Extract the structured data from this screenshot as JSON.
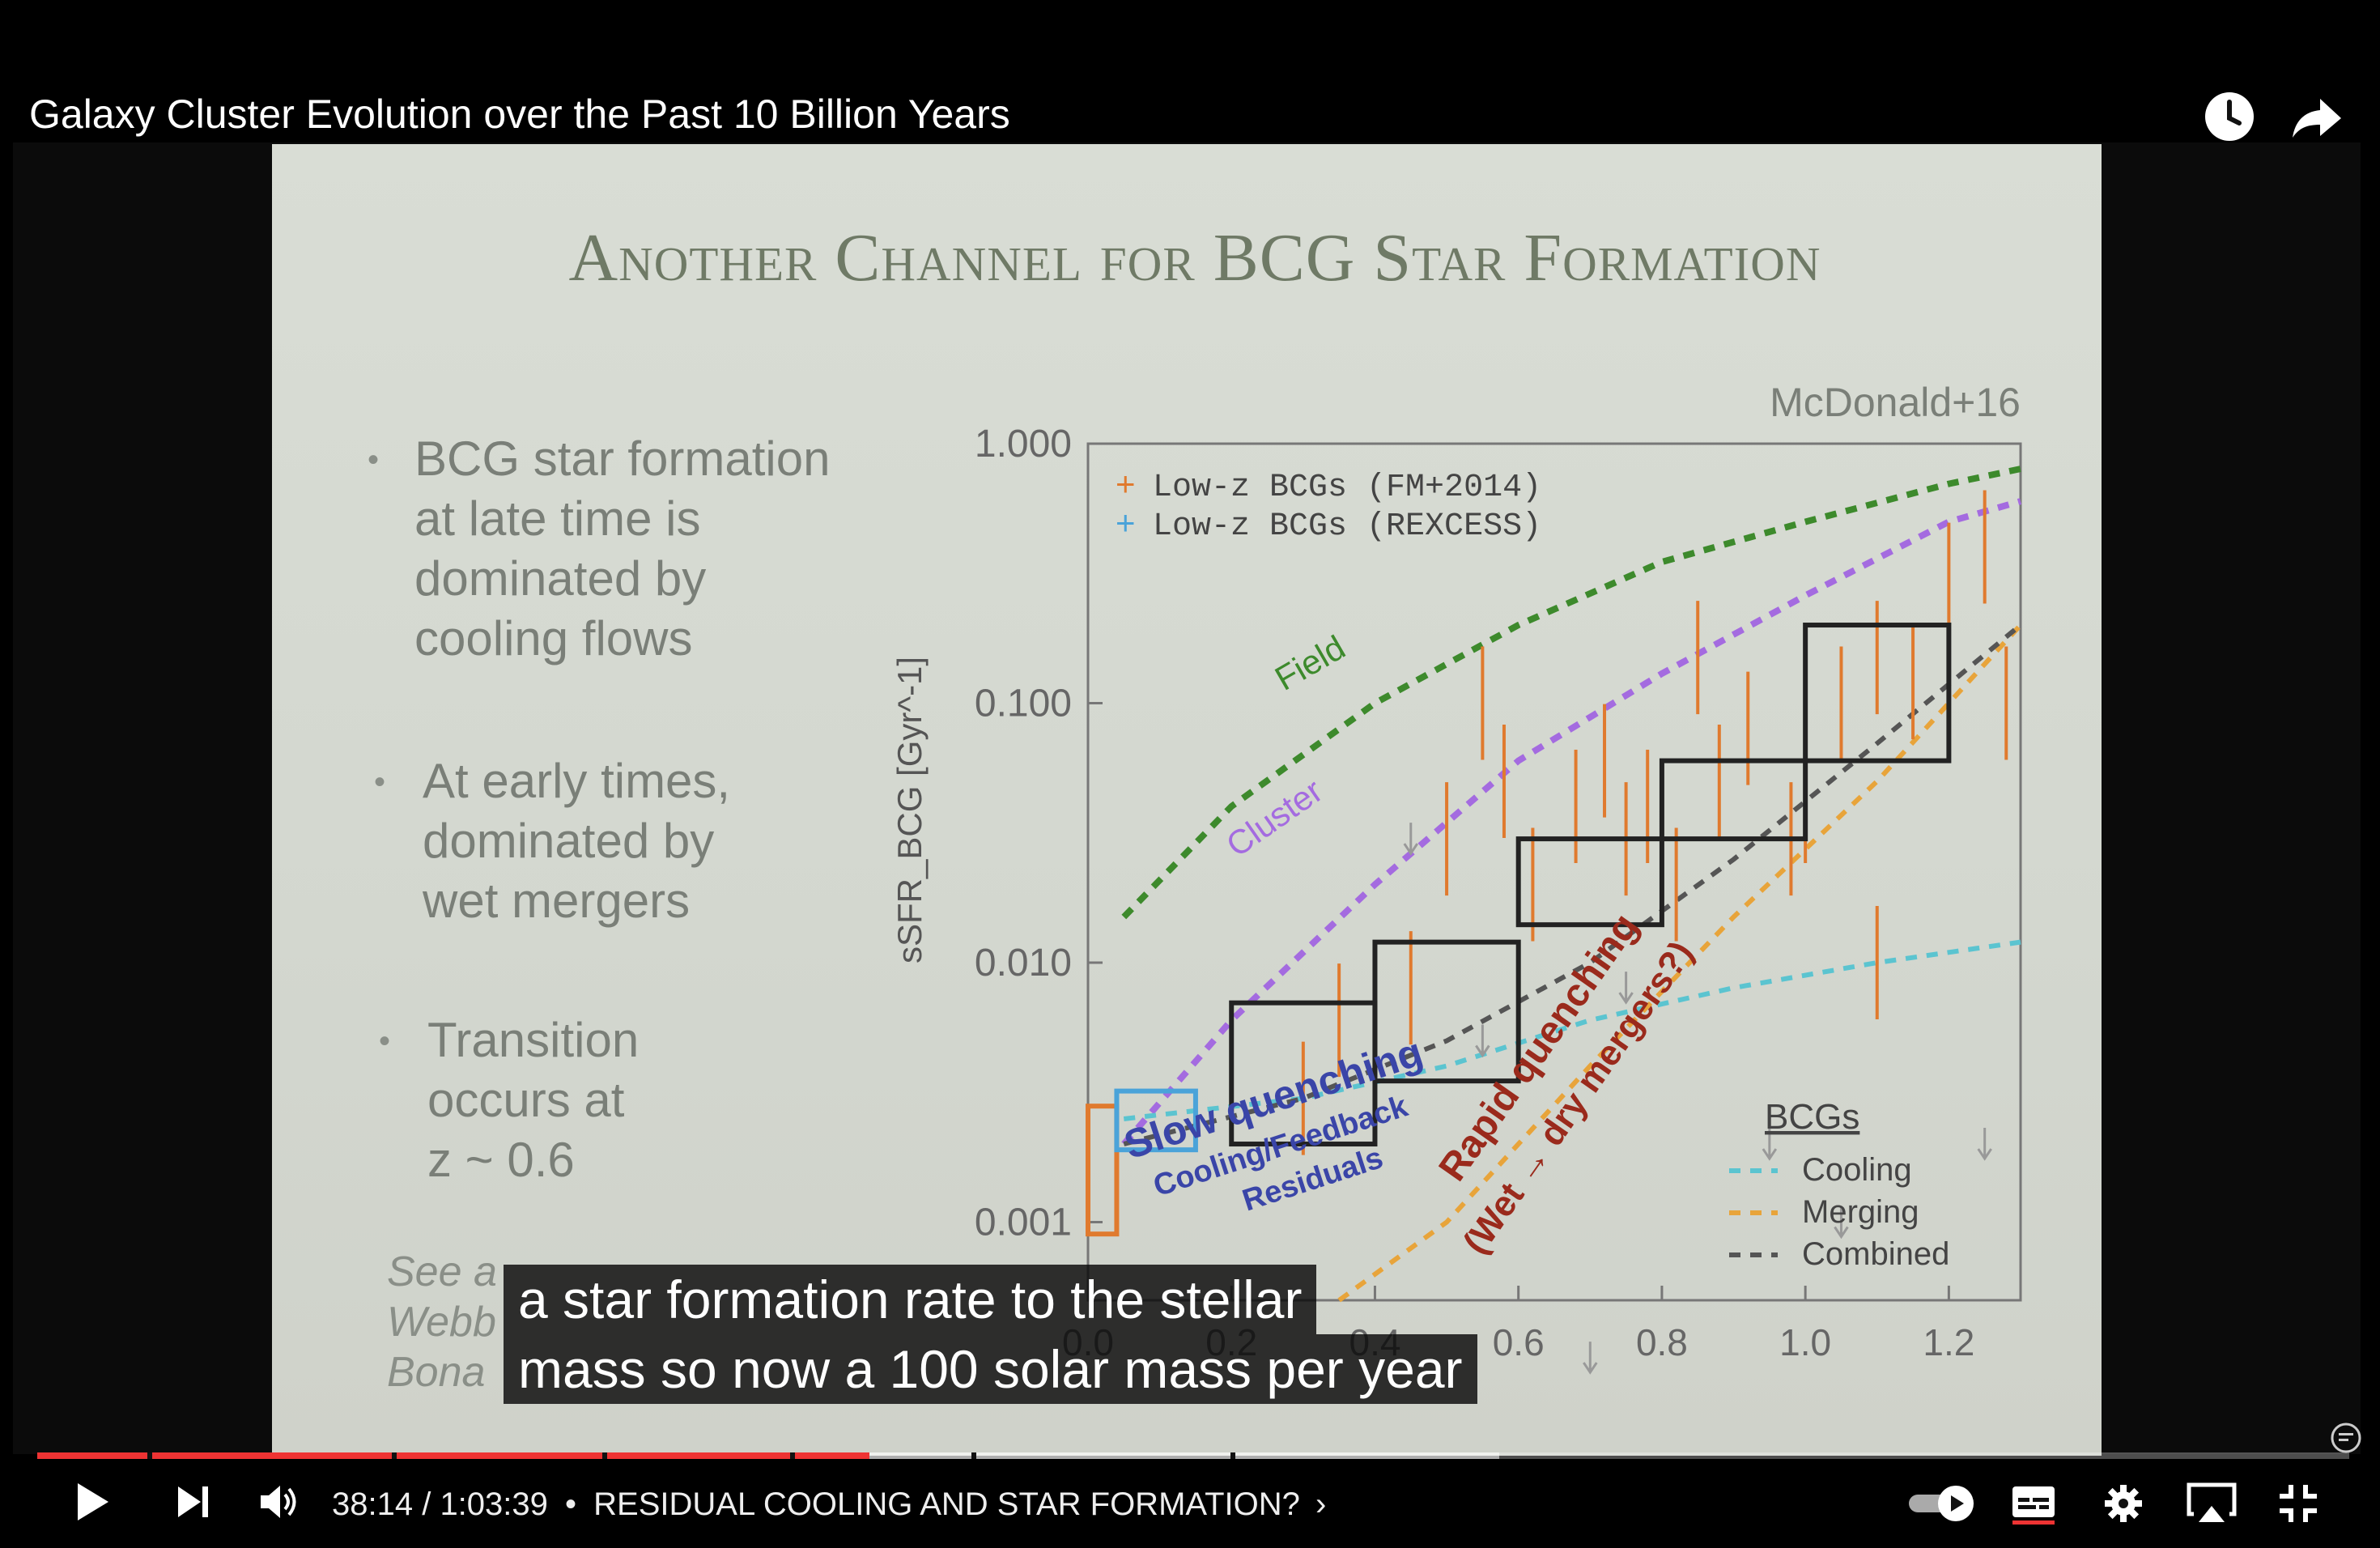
{
  "video": {
    "title": "Galaxy Cluster Evolution over the Past 10 Billion Years",
    "progress_fraction": 0.36,
    "buffered_fraction": 0.38
  },
  "slide": {
    "title": "Another Channel for BCG Star Formation",
    "bullets": [
      "BCG star formation\nat late time is\ndominated by\ncooling flows",
      "At early times,\ndominated by\nwet mergers",
      "Transition\noccurs at\nz ~ 0.6"
    ],
    "see_also": "See a\nWebb\nBona"
  },
  "chart_data": {
    "type": "scatter",
    "citation": "McDonald+16",
    "ylabel": "sSFR_BCG [Gyr^-1]",
    "yscale": "log",
    "ylim": [
      0.0005,
      1.0
    ],
    "xlim": [
      0.0,
      1.3
    ],
    "yticks": [
      "1.000",
      "0.100",
      "0.010",
      "0.001"
    ],
    "xticks": [
      "0.0",
      "0.2",
      "0.4",
      "0.6",
      "0.8",
      "1.0",
      "1.2"
    ],
    "legend_top": [
      "Low-z BCGs (FM+2014)",
      "Low-z BCGs (REXCESS)"
    ],
    "legend_top_colors": [
      "#e07a2e",
      "#4aa3d9"
    ],
    "legend_bottom_title": "BCGs",
    "legend_bottom": [
      "Cooling",
      "Merging",
      "Combined"
    ],
    "legend_bottom_colors": [
      "#5bc4d0",
      "#e8a43a",
      "#555555"
    ],
    "curve_labels": [
      "Field",
      "Cluster"
    ],
    "curve_colors": [
      "#3d8a2c",
      "#a46be0"
    ],
    "annotations": [
      "Slow quenching",
      "Cooling/Feedback",
      "Residuals",
      "Rapid quenching",
      "(Wet → dry mergers?)"
    ],
    "annotation_colors": [
      "#3a45a8",
      "#9a2a1c"
    ],
    "field_curve": [
      [
        0.05,
        0.015
      ],
      [
        0.2,
        0.04
      ],
      [
        0.4,
        0.1
      ],
      [
        0.6,
        0.2
      ],
      [
        0.8,
        0.35
      ],
      [
        1.0,
        0.5
      ],
      [
        1.2,
        0.7
      ],
      [
        1.3,
        0.8
      ]
    ],
    "cluster_curve": [
      [
        0.05,
        0.002
      ],
      [
        0.2,
        0.006
      ],
      [
        0.4,
        0.02
      ],
      [
        0.6,
        0.06
      ],
      [
        0.8,
        0.13
      ],
      [
        1.0,
        0.26
      ],
      [
        1.2,
        0.5
      ],
      [
        1.3,
        0.6
      ]
    ],
    "cooling_curve": [
      [
        0.05,
        0.0025
      ],
      [
        0.3,
        0.003
      ],
      [
        0.5,
        0.004
      ],
      [
        0.7,
        0.006
      ],
      [
        0.9,
        0.008
      ],
      [
        1.1,
        0.01
      ],
      [
        1.3,
        0.012
      ]
    ],
    "merging_curve": [
      [
        0.35,
        0.0003
      ],
      [
        0.5,
        0.001
      ],
      [
        0.7,
        0.004
      ],
      [
        0.9,
        0.015
      ],
      [
        1.1,
        0.05
      ],
      [
        1.3,
        0.2
      ]
    ],
    "combined_curve": [
      [
        0.05,
        0.002
      ],
      [
        0.3,
        0.003
      ],
      [
        0.5,
        0.005
      ],
      [
        0.7,
        0.01
      ],
      [
        0.9,
        0.025
      ],
      [
        1.1,
        0.07
      ],
      [
        1.3,
        0.2
      ]
    ],
    "boxes": [
      {
        "x0": 0.0,
        "x1": 0.04,
        "y0": 0.0009,
        "y1": 0.0028,
        "color": "#e07a2e"
      },
      {
        "x0": 0.04,
        "x1": 0.15,
        "y0": 0.0019,
        "y1": 0.0032,
        "color": "#4aa3d9"
      },
      {
        "x0": 0.2,
        "x1": 0.4,
        "y0": 0.002,
        "y1": 0.007,
        "color": "#222222"
      },
      {
        "x0": 0.4,
        "x1": 0.6,
        "y0": 0.0035,
        "y1": 0.012,
        "color": "#222222"
      },
      {
        "x0": 0.6,
        "x1": 0.8,
        "y0": 0.014,
        "y1": 0.03,
        "color": "#222222"
      },
      {
        "x0": 0.8,
        "x1": 1.0,
        "y0": 0.03,
        "y1": 0.06,
        "color": "#222222"
      },
      {
        "x0": 1.0,
        "x1": 1.2,
        "y0": 0.06,
        "y1": 0.2,
        "color": "#222222"
      }
    ],
    "points": [
      [
        0.3,
        0.003
      ],
      [
        0.35,
        0.006
      ],
      [
        0.45,
        0.008
      ],
      [
        0.5,
        0.03
      ],
      [
        0.55,
        0.1
      ],
      [
        0.58,
        0.05
      ],
      [
        0.62,
        0.02
      ],
      [
        0.68,
        0.04
      ],
      [
        0.72,
        0.06
      ],
      [
        0.75,
        0.03
      ],
      [
        0.78,
        0.04
      ],
      [
        0.82,
        0.02
      ],
      [
        0.85,
        0.15
      ],
      [
        0.88,
        0.05
      ],
      [
        0.92,
        0.08
      ],
      [
        0.98,
        0.03
      ],
      [
        1.0,
        0.04
      ],
      [
        1.05,
        0.1
      ],
      [
        1.1,
        0.15
      ],
      [
        1.15,
        0.12
      ],
      [
        1.2,
        0.3
      ],
      [
        1.25,
        0.4
      ],
      [
        1.28,
        0.1
      ],
      [
        1.1,
        0.01
      ]
    ],
    "upper_limits": [
      [
        0.45,
        0.03
      ],
      [
        0.55,
        0.005
      ],
      [
        0.75,
        0.008
      ],
      [
        0.95,
        0.002
      ],
      [
        1.05,
        0.001
      ],
      [
        1.25,
        0.002
      ],
      [
        0.7,
        0.0003
      ]
    ]
  },
  "subtitle": {
    "lines": [
      "a star formation rate to the stellar",
      "mass so now a 100 solar mass per year"
    ]
  },
  "controls": {
    "time": "38:14 / 1:03:39",
    "chapter": "RESIDUAL COOLING AND STAR FORMATION?",
    "chapter_chevron": "›",
    "separator": "•"
  }
}
